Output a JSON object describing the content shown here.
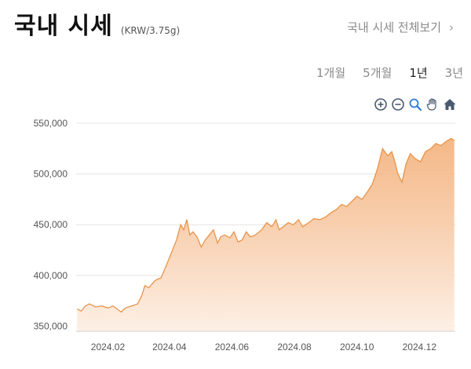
{
  "header": {
    "title": "국내 시세",
    "unit": "(KRW/3.75g)",
    "view_all": "국내 시세 전체보기",
    "chevron": "›"
  },
  "periods": [
    {
      "label": "1개월",
      "active": false
    },
    {
      "label": "5개월",
      "active": false
    },
    {
      "label": "1년",
      "active": true
    },
    {
      "label": "3년",
      "active": false
    }
  ],
  "toolbar": {
    "icons": [
      "zoom-in-icon",
      "zoom-out-icon",
      "magnifier-icon",
      "pan-hand-icon",
      "home-icon"
    ]
  },
  "colors": {
    "line": "#e8944a",
    "fill_top": "#f3b07a",
    "fill_bottom": "#fdf0e6",
    "grid": "#e3e3e3"
  },
  "chart_data": {
    "type": "area",
    "title": "",
    "xlabel": "",
    "ylabel": "",
    "ylim": [
      345000,
      560000
    ],
    "yticks": [
      350000,
      400000,
      450000,
      500000,
      550000
    ],
    "ytick_labels": [
      "350,000",
      "400,000",
      "450,000",
      "500,000",
      "550,000"
    ],
    "xticks": [
      "2024-02-01",
      "2024-04-01",
      "2024-06-01",
      "2024-08-01",
      "2024-10-01",
      "2024-12-01"
    ],
    "xtick_labels": [
      "2024.02",
      "2024.04",
      "2024.06",
      "2024.08",
      "2024.10",
      "2024.12"
    ],
    "grid": true,
    "series": [
      {
        "x": [
          "2024-01-02",
          "2024-01-06",
          "2024-01-10",
          "2024-01-14",
          "2024-01-20",
          "2024-01-26",
          "2024-02-01",
          "2024-02-06",
          "2024-02-10",
          "2024-02-14",
          "2024-02-18",
          "2024-02-24",
          "2024-03-01",
          "2024-03-05",
          "2024-03-08",
          "2024-03-12",
          "2024-03-18",
          "2024-03-24",
          "2024-03-29",
          "2024-04-04",
          "2024-04-08",
          "2024-04-12",
          "2024-04-15",
          "2024-04-18",
          "2024-04-21",
          "2024-04-24",
          "2024-04-28",
          "2024-05-02",
          "2024-05-06",
          "2024-05-10",
          "2024-05-14",
          "2024-05-18",
          "2024-05-21",
          "2024-05-25",
          "2024-05-30",
          "2024-06-03",
          "2024-06-07",
          "2024-06-11",
          "2024-06-15",
          "2024-06-19",
          "2024-06-24",
          "2024-06-30",
          "2024-07-05",
          "2024-07-10",
          "2024-07-14",
          "2024-07-17",
          "2024-07-21",
          "2024-07-26",
          "2024-07-31",
          "2024-08-05",
          "2024-08-09",
          "2024-08-15",
          "2024-08-20",
          "2024-08-26",
          "2024-09-01",
          "2024-09-06",
          "2024-09-11",
          "2024-09-16",
          "2024-09-21",
          "2024-09-26",
          "2024-10-01",
          "2024-10-06",
          "2024-10-11",
          "2024-10-16",
          "2024-10-21",
          "2024-10-26",
          "2024-10-31",
          "2024-11-04",
          "2024-11-07",
          "2024-11-10",
          "2024-11-14",
          "2024-11-18",
          "2024-11-22",
          "2024-11-27",
          "2024-12-02",
          "2024-12-07",
          "2024-12-12",
          "2024-12-17",
          "2024-12-22",
          "2024-12-27",
          "2025-01-01",
          "2025-01-04"
        ],
        "values": [
          367000,
          365000,
          370000,
          372000,
          369000,
          370000,
          368000,
          370000,
          367000,
          364000,
          368000,
          370000,
          372000,
          380000,
          390000,
          388000,
          395000,
          398000,
          410000,
          425000,
          435000,
          450000,
          445000,
          455000,
          440000,
          443000,
          438000,
          428000,
          435000,
          440000,
          445000,
          432000,
          438000,
          440000,
          437000,
          443000,
          433000,
          435000,
          443000,
          438000,
          440000,
          445000,
          452000,
          448000,
          455000,
          445000,
          448000,
          452000,
          450000,
          455000,
          448000,
          452000,
          456000,
          455000,
          458000,
          462000,
          465000,
          470000,
          468000,
          473000,
          478000,
          475000,
          482000,
          490000,
          505000,
          525000,
          518000,
          522000,
          512000,
          500000,
          492000,
          510000,
          520000,
          515000,
          512000,
          522000,
          525000,
          530000,
          528000,
          532000,
          535000,
          533000
        ]
      }
    ]
  }
}
